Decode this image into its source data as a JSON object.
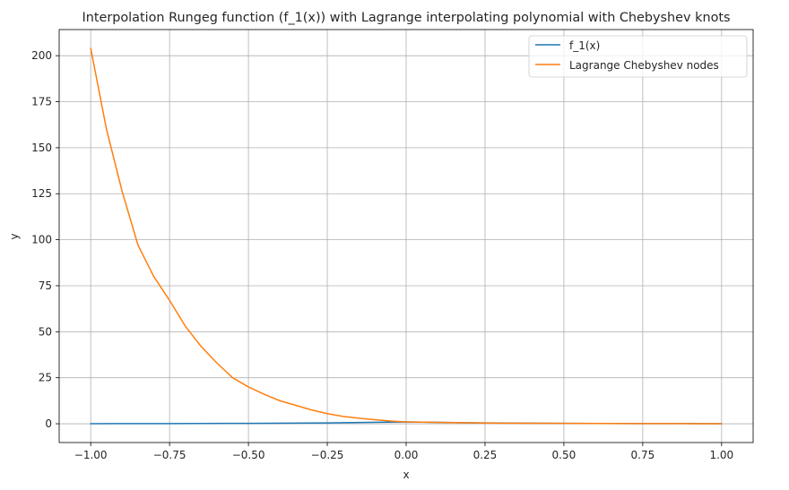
{
  "chart_data": {
    "type": "line",
    "title": "Interpolation Rungeg function (f_1(x)) with Lagrange interpolating polynomial with Chebyshev knots",
    "xlabel": "x",
    "ylabel": "y",
    "xlim": [
      -1.1,
      1.1
    ],
    "ylim": [
      -10.2,
      214.2
    ],
    "xticks": [
      -1.0,
      -0.75,
      -0.5,
      -0.25,
      0.0,
      0.25,
      0.5,
      0.75,
      1.0
    ],
    "xtick_labels": [
      "−1.00",
      "−0.75",
      "−0.50",
      "−0.25",
      "0.00",
      "0.25",
      "0.50",
      "0.75",
      "1.00"
    ],
    "yticks": [
      0,
      25,
      50,
      75,
      100,
      125,
      150,
      175,
      200
    ],
    "ytick_labels": [
      "0",
      "25",
      "50",
      "75",
      "100",
      "125",
      "150",
      "175",
      "200"
    ],
    "grid": true,
    "legend_position": "top-right",
    "series": [
      {
        "name": "f_1(x)",
        "color": "#1f77b4",
        "x": [
          -1.0,
          -0.75,
          -0.5,
          -0.25,
          0.0,
          0.25,
          0.5,
          0.75,
          1.0
        ],
        "y": [
          0.05,
          0.1,
          0.2,
          0.45,
          1.0,
          0.45,
          0.2,
          0.1,
          0.05
        ]
      },
      {
        "name": "Lagrange Chebyshev nodes",
        "color": "#ff7f0e",
        "x": [
          -1.0,
          -0.95,
          -0.9,
          -0.85,
          -0.8,
          -0.75,
          -0.7,
          -0.65,
          -0.6,
          -0.55,
          -0.5,
          -0.45,
          -0.4,
          -0.35,
          -0.3,
          -0.25,
          -0.2,
          -0.15,
          -0.1,
          -0.05,
          0.0,
          0.05,
          0.1,
          0.15,
          0.2,
          0.25,
          0.3,
          0.4,
          0.5,
          0.6,
          0.7,
          0.75,
          0.8,
          0.9,
          1.0
        ],
        "y": [
          204,
          160,
          126,
          97,
          80,
          67,
          53,
          42,
          33,
          25,
          20,
          16,
          12.5,
          10,
          7.5,
          5.5,
          4,
          3,
          2.2,
          1.5,
          1.0,
          0.9,
          0.75,
          0.6,
          0.5,
          0.4,
          0.35,
          0.25,
          0.2,
          0.15,
          0.1,
          0.1,
          0.08,
          0.05,
          0.05
        ]
      }
    ]
  }
}
